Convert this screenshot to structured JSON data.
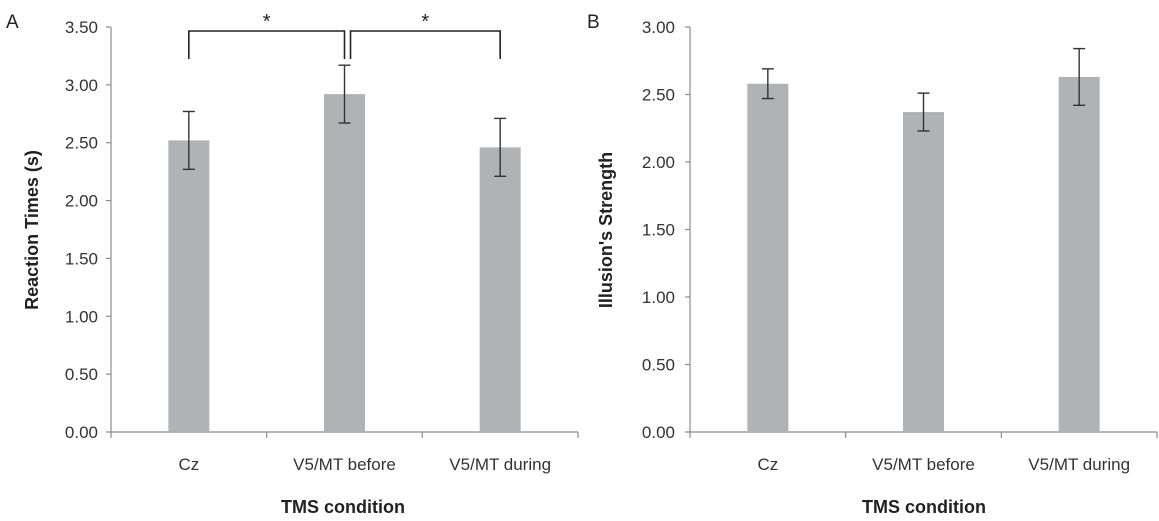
{
  "colors": {
    "bar": "#b1b2b6",
    "axis": "#8c8c8c",
    "error": "#333333",
    "bracket": "#222222"
  },
  "chart_data": [
    {
      "panel_label": "A",
      "type": "bar",
      "categories": [
        "Cz",
        "V5/MT before",
        "V5/MT during"
      ],
      "values": [
        2.52,
        2.92,
        2.46
      ],
      "error": [
        0.25,
        0.25,
        0.25
      ],
      "xlabel": "TMS condition",
      "ylabel": "Reaction Times (s)",
      "ylim": [
        0,
        3.5
      ],
      "yticks": [
        "0.00",
        "0.50",
        "1.00",
        "1.50",
        "2.00",
        "2.50",
        "3.00",
        "3.50"
      ],
      "grid": false,
      "significance": [
        {
          "from": 0,
          "to": 1,
          "label": "*"
        },
        {
          "from": 1,
          "to": 2,
          "label": "*"
        }
      ]
    },
    {
      "panel_label": "B",
      "type": "bar",
      "categories": [
        "Cz",
        "V5/MT before",
        "V5/MT during"
      ],
      "values": [
        2.58,
        2.37,
        2.63
      ],
      "error": [
        0.11,
        0.14,
        0.21
      ],
      "xlabel": "TMS condition",
      "ylabel": "Illusion's Strength",
      "ylim": [
        0,
        3.0
      ],
      "yticks": [
        "0.00",
        "0.50",
        "1.00",
        "1.50",
        "2.00",
        "2.50",
        "3.00"
      ],
      "grid": false,
      "significance": []
    }
  ]
}
